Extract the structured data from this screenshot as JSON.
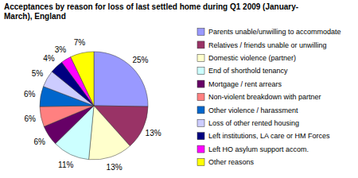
{
  "chart_data": {
    "type": "pie",
    "title": "Acceptances by reason for loss of last settled home during Q1 2009 (January- March), England",
    "categories": [
      "Parents unable/unwilling to accommodate",
      "Relatives / friends unable or unwilling",
      "Domestic violence (partner)",
      "End of shorthold tenancy",
      "Mortgage / rent arrears",
      "Non-violent breakdown with partner",
      "Other violence / harassment",
      "Loss of other rented housing",
      "Left institutions, LA care or HM Forces",
      "Left HO asylum support accom.",
      "Other reasons"
    ],
    "values": [
      25,
      13,
      13,
      11,
      6,
      6,
      6,
      5,
      4,
      3,
      7
    ],
    "value_labels": [
      "25%",
      "13%",
      "13%",
      "11%",
      "6%",
      "6%",
      "6%",
      "5%",
      "4%",
      "3%",
      "7%"
    ],
    "colors": [
      "#9999ff",
      "#993366",
      "#ffffcc",
      "#ccffff",
      "#660066",
      "#ff8080",
      "#0066cc",
      "#ccccff",
      "#000080",
      "#ff00ff",
      "#ffff00"
    ],
    "data_labels": true,
    "legend": "right"
  }
}
